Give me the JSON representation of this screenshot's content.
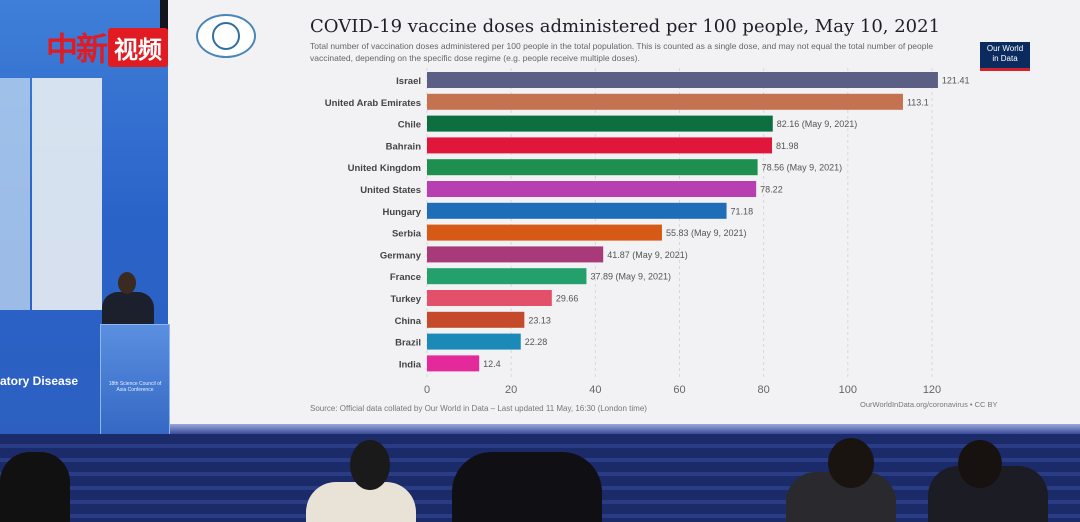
{
  "watermark": {
    "prefix": "中新",
    "boxed": "视频"
  },
  "backdrop": {
    "left_text": "atory Disease"
  },
  "podium": {
    "text": "18th Science Council of Asia Conference"
  },
  "slide": {
    "title": "COVID-19 vaccine doses administered per 100 people, May 10, 2021",
    "subtitle": "Total number of vaccination doses administered per 100 people in the total population. This is counted as a single dose, and may not equal the total number of people vaccinated, depending on the specific dose regime (e.g. people receive multiple doses).",
    "badge": {
      "line1": "Our World",
      "line2": "in Data"
    },
    "source": "Source: Official data collated by Our World in Data – Last updated 11 May, 16:30 (London time)",
    "credit": "OurWorldInData.org/coronavirus • CC BY"
  },
  "chart_data": {
    "type": "bar",
    "orientation": "horizontal",
    "title": "COVID-19 vaccine doses administered per 100 people, May 10, 2021",
    "xlim": [
      0,
      120
    ],
    "xticks": [
      0,
      20,
      40,
      60,
      80,
      100,
      120
    ],
    "grid": true,
    "categories": [
      "Israel",
      "United Arab Emirates",
      "Chile",
      "Bahrain",
      "United Kingdom",
      "United States",
      "Hungary",
      "Serbia",
      "Germany",
      "France",
      "Turkey",
      "China",
      "Brazil",
      "India"
    ],
    "values": [
      121.41,
      113.1,
      82.16,
      81.98,
      78.56,
      78.22,
      71.18,
      55.83,
      41.87,
      37.89,
      29.66,
      23.13,
      22.28,
      12.4
    ],
    "labels": [
      "121.41",
      "113.1",
      "82.16 (May 9, 2021)",
      "81.98",
      "78.56 (May 9, 2021)",
      "78.22",
      "71.18",
      "55.83 (May 9, 2021)",
      "41.87 (May 9, 2021)",
      "37.89 (May 9, 2021)",
      "29.66",
      "23.13",
      "22.28",
      "12.4"
    ],
    "colors": [
      "#5b5f86",
      "#c4724f",
      "#0d6e3f",
      "#e0173b",
      "#1e8f4e",
      "#b83fb2",
      "#1f6db8",
      "#d65a16",
      "#a93a7a",
      "#23a06c",
      "#e2506a",
      "#c44a2b",
      "#1b8ab8",
      "#e42a9a"
    ]
  }
}
